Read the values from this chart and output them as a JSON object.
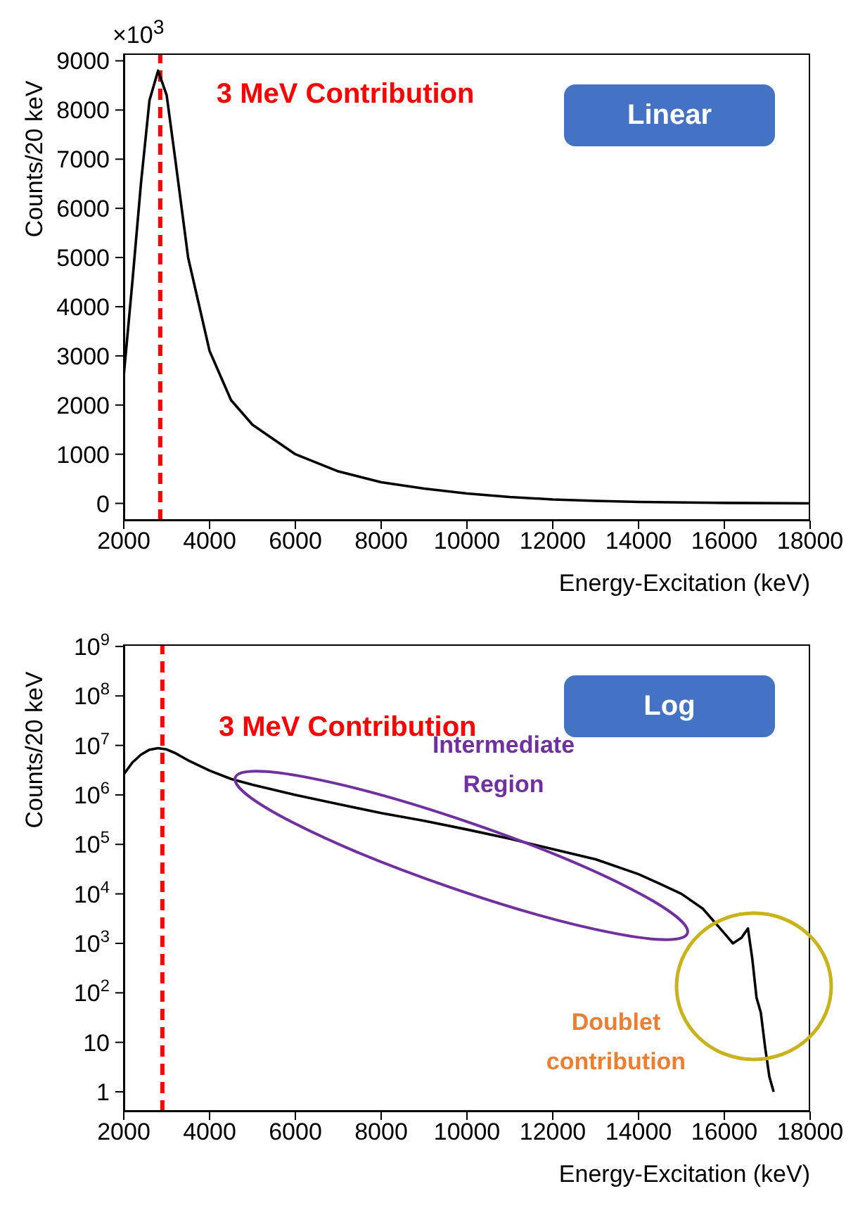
{
  "chart_data": [
    {
      "type": "line",
      "xlabel": "Energy-Excitation (keV)",
      "ylabel": "Counts/20 keV",
      "xlim": [
        2000,
        18000
      ],
      "xticks": [
        2000,
        4000,
        6000,
        8000,
        10000,
        12000,
        14000,
        16000,
        18000
      ],
      "ylim": [
        -350,
        9150
      ],
      "yticks": [
        0,
        1000,
        2000,
        3000,
        4000,
        5000,
        6000,
        7000,
        8000,
        9000
      ],
      "marker": "none",
      "line_style": "solid",
      "x": [
        2000,
        2200,
        2400,
        2600,
        2800,
        3000,
        3200,
        3500,
        4000,
        4500,
        5000,
        6000,
        7000,
        8000,
        9000,
        10000,
        11000,
        12000,
        13000,
        14000,
        16000,
        18000
      ],
      "series": [
        {
          "color": "#000000",
          "values": [
            2600,
            4500,
            6500,
            8200,
            8800,
            8300,
            7000,
            5000,
            3100,
            2100,
            1600,
            1000,
            650,
            430,
            300,
            200,
            130,
            80,
            50,
            30,
            10,
            0
          ]
        }
      ],
      "ref_lines": [
        {
          "axis": "x",
          "value": 2850,
          "label": "3 MeV Contribution",
          "color": "#ff0000",
          "line_style": "dashed"
        }
      ],
      "annotations": [
        "Linear",
        "×10$^{3}$"
      ]
    },
    {
      "type": "line",
      "xlabel": "Energy-Excitation (keV)",
      "ylabel": "Counts/20 keV",
      "log": "y",
      "xlim": [
        2000,
        18000
      ],
      "xticks": [
        2000,
        4000,
        6000,
        8000,
        10000,
        12000,
        14000,
        16000,
        18000
      ],
      "ylim": [
        0.4,
        1100000000
      ],
      "yticks": [
        {
          "value": 1,
          "label": "1"
        },
        {
          "value": 10,
          "label": "10"
        },
        {
          "value": 100,
          "label": "10$^{2}$"
        },
        {
          "value": 1000,
          "label": "10$^{3}$"
        },
        {
          "value": 10000,
          "label": "10$^{4}$"
        },
        {
          "value": 100000,
          "label": "10$^{5}$"
        },
        {
          "value": 1000000,
          "label": "10$^{6}$"
        },
        {
          "value": 10000000,
          "label": "10$^{7}$"
        },
        {
          "value": 100000000,
          "label": "10$^{8}$"
        },
        {
          "value": 1000000000,
          "label": "10$^{9}$"
        }
      ],
      "marker": "none",
      "line_style": "solid",
      "x": [
        2000,
        2200,
        2400,
        2600,
        2800,
        3000,
        3200,
        3500,
        4000,
        4500,
        5000,
        6000,
        7000,
        8000,
        9000,
        10000,
        11000,
        12000,
        13000,
        14000,
        14500,
        15000,
        15500,
        16000,
        16200,
        16400,
        16550,
        16650,
        16750,
        16850,
        16950,
        17050,
        17150
      ],
      "series": [
        {
          "color": "#000000",
          "values": [
            2600000,
            4500000,
            6500000,
            8200000,
            8800000,
            8300000,
            7000000,
            5000000,
            3100000,
            2100000,
            1600000,
            1000000,
            650000,
            430000,
            300000,
            200000,
            130000,
            80000,
            50000,
            25000,
            16000,
            10000,
            5000,
            1600,
            1000,
            1300,
            2000,
            500,
            80,
            40,
            8,
            2,
            1
          ]
        }
      ],
      "ref_lines": [
        {
          "axis": "x",
          "value": 2900,
          "label": "3 MeV Contribution",
          "color": "#ff0000",
          "line_style": "dashed"
        }
      ],
      "annotations": [
        "Log",
        "Intermediate Region",
        "Doublet contribution"
      ]
    }
  ]
}
